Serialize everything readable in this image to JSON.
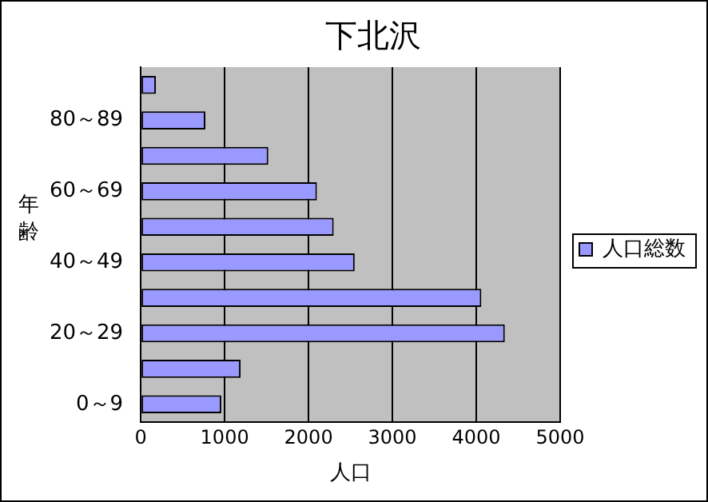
{
  "chart_data": {
    "type": "bar",
    "orientation": "horizontal",
    "title": "下北沢",
    "xlabel": "人口",
    "ylabel": "年齢",
    "categories": [
      null,
      "80～89",
      null,
      "60～69",
      null,
      "40～49",
      null,
      "20～29",
      null,
      "0～9"
    ],
    "series": [
      {
        "name": "人口総数",
        "color": "#9999ff",
        "values": [
          180,
          770,
          1520,
          2100,
          2300,
          2550,
          4060,
          4340,
          1190,
          960
        ]
      }
    ],
    "xlim": [
      0,
      5000
    ],
    "xticks": [
      0,
      1000,
      2000,
      3000,
      4000,
      5000
    ],
    "grid": "x",
    "legend": "right"
  }
}
